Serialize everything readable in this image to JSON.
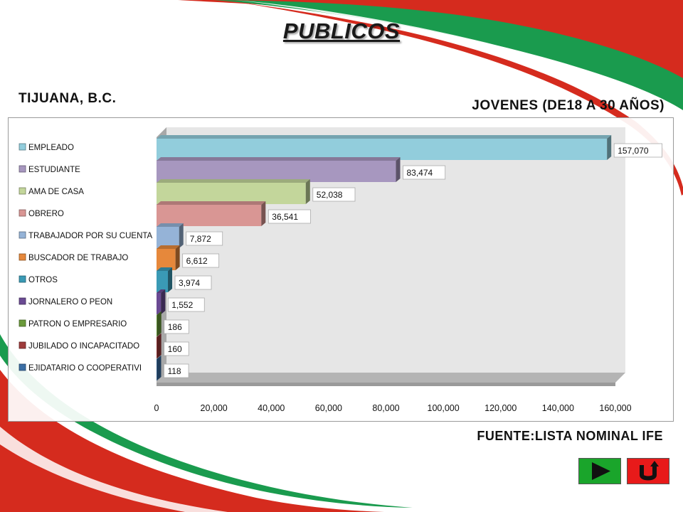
{
  "slide": {
    "title": "PUBLICOS",
    "city": "TIJUANA, B.C.",
    "subtitle": "JOVENES (DE18 A 30 AÑOS)",
    "source": "FUENTE:LISTA NOMINAL IFE"
  },
  "nav": {
    "next_icon": "play-triangle-icon",
    "back_icon": "u-turn-arrow-icon",
    "next_color": "#1aa52b",
    "back_color": "#e81a1a"
  },
  "chart_data": {
    "type": "bar",
    "orientation": "horizontal",
    "style": "3d",
    "title": "",
    "xlabel": "",
    "ylabel": "",
    "xlim": [
      0,
      160000
    ],
    "ticks": [
      "0",
      "20,000",
      "40,000",
      "60,000",
      "80,000",
      "100,000",
      "120,000",
      "140,000",
      "160,000"
    ],
    "tick_values": [
      0,
      20000,
      40000,
      60000,
      80000,
      100000,
      120000,
      140000,
      160000
    ],
    "legend_position": "left",
    "grid": false,
    "categories": [
      "EMPLEADO",
      "ESTUDIANTE",
      "AMA DE CASA",
      "OBRERO",
      "TRABAJADOR POR SU CUENTA",
      "BUSCADOR DE TRABAJO",
      "OTROS",
      "JORNALERO O PEON",
      "PATRON O EMPRESARIO",
      "JUBILADO O INCAPACITADO",
      "EJIDATARIO O COOPERATIVI"
    ],
    "values": [
      157070,
      83474,
      52038,
      36541,
      7872,
      6612,
      3974,
      1552,
      186,
      160,
      118
    ],
    "data_labels": [
      "157,070",
      "83,474",
      "52,038",
      "36,541",
      "7,872",
      "6,612",
      "3,974",
      "1,552",
      "186",
      "160",
      "118"
    ],
    "colors": [
      "#92cddc",
      "#a797bf",
      "#c3d69b",
      "#d99694",
      "#95b3d7",
      "#e6883b",
      "#3a9ab5",
      "#6a4a93",
      "#6a9a3a",
      "#9e3b3b",
      "#3b6ea5"
    ]
  }
}
